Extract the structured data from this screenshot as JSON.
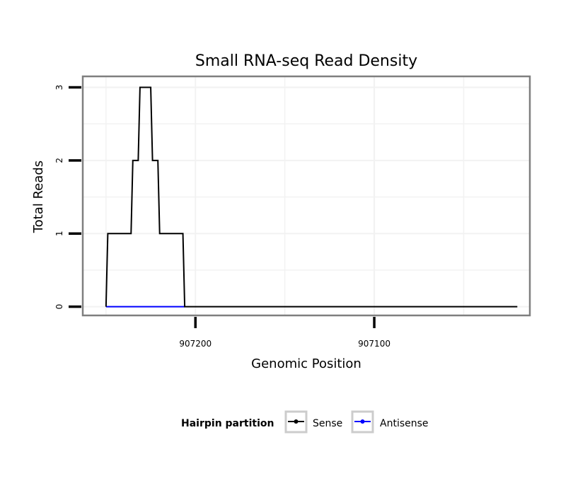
{
  "chart_data": {
    "type": "line",
    "title": "Small RNA-seq Read Density",
    "xlabel": "Genomic Position",
    "ylabel": "Total Reads",
    "x_reversed": true,
    "xlim": [
      907263,
      907013
    ],
    "ylim": [
      -0.12,
      3.15
    ],
    "x_ticks": [
      907200,
      907100
    ],
    "y_ticks": [
      0,
      1,
      2,
      3
    ],
    "x_tick_labels": [
      "907200",
      "907100"
    ],
    "y_tick_labels": [
      "0",
      "1",
      "2",
      "3"
    ],
    "grid": true,
    "legend": {
      "title": "Hairpin partition",
      "position": "bottom",
      "entries": [
        {
          "name": "Sense",
          "color": "#000000"
        },
        {
          "name": "Antisense",
          "color": "#0000ff"
        }
      ]
    },
    "series": [
      {
        "name": "Sense",
        "color": "#000000",
        "step": true,
        "x": [
          907250,
          907249,
          907236,
          907235,
          907232,
          907231,
          907225,
          907224,
          907221,
          907220,
          907207,
          907206,
          907020
        ],
        "y": [
          0,
          1,
          1,
          2,
          2,
          3,
          3,
          2,
          2,
          1,
          1,
          0,
          0
        ]
      },
      {
        "name": "Antisense",
        "color": "#0000ff",
        "step": true,
        "x": [
          907250,
          907206
        ],
        "y": [
          0,
          0
        ]
      }
    ]
  }
}
